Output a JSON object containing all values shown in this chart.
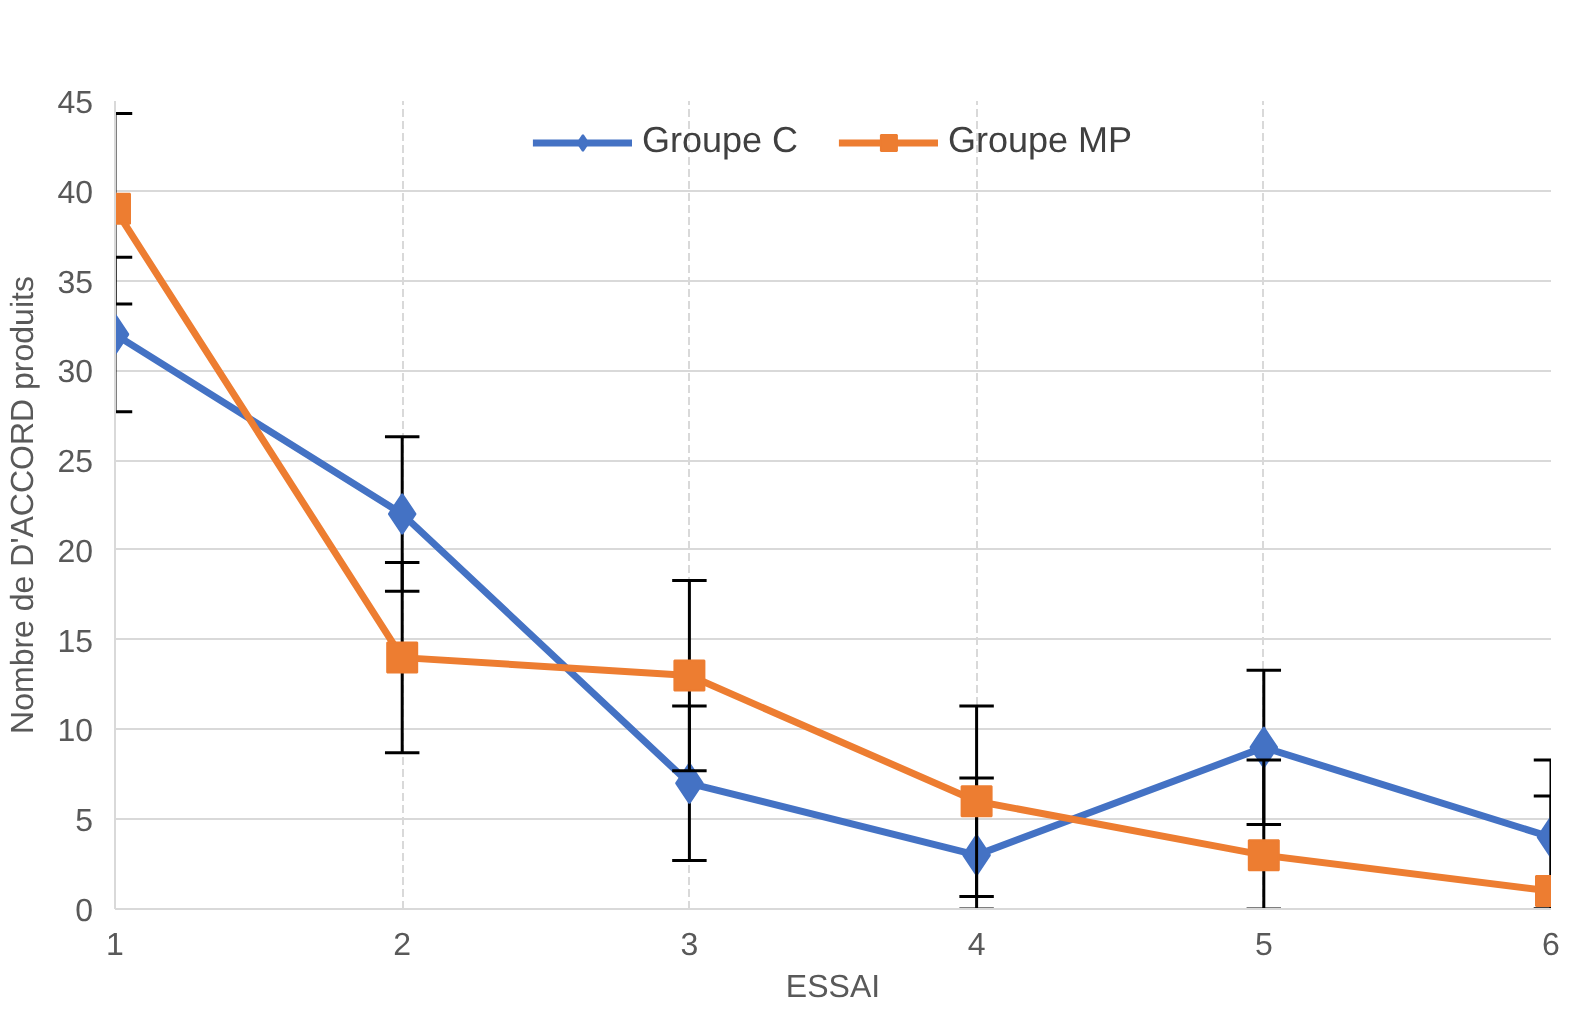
{
  "chart_data": {
    "type": "line",
    "xlabel": "ESSAI",
    "ylabel": "Nombre de D'ACCORD produits",
    "x": [
      1,
      2,
      3,
      4,
      5,
      6
    ],
    "series": [
      {
        "name": "Groupe C",
        "color": "#4472c4",
        "marker": "diamond",
        "values": [
          32,
          22,
          7,
          3,
          9,
          4
        ],
        "errors": [
          [
            27.7,
            36.3
          ],
          [
            17.7,
            26.3
          ],
          [
            2.7,
            11.3
          ],
          [
            0,
            7.3
          ],
          [
            4.7,
            13.3
          ],
          [
            0,
            8.3
          ]
        ]
      },
      {
        "name": "Groupe MP",
        "color": "#ed7d31",
        "marker": "square",
        "values": [
          39,
          14,
          13,
          6,
          3,
          1
        ],
        "errors": [
          [
            33.7,
            44.3
          ],
          [
            8.7,
            19.3
          ],
          [
            7.7,
            18.3
          ],
          [
            0.7,
            11.3
          ],
          [
            0,
            8.3
          ],
          [
            0,
            6.3
          ]
        ]
      }
    ],
    "xlim": [
      1,
      6
    ],
    "xticks": [
      1,
      2,
      3,
      4,
      5,
      6
    ],
    "ylim": [
      0,
      45
    ],
    "yticks": [
      0,
      5,
      10,
      15,
      20,
      25,
      30,
      35,
      40,
      45
    ],
    "grid": true,
    "legend": "top",
    "line_style": "solid"
  }
}
